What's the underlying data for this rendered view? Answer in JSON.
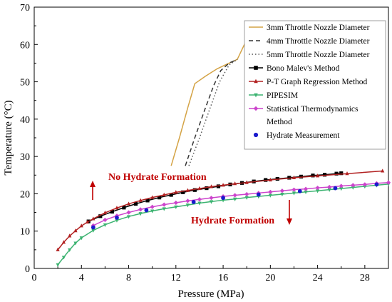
{
  "chart_data": {
    "type": "line",
    "xlabel": "Pressure (MPa)",
    "ylabel": "Temperature (°C)",
    "xlim": [
      0,
      30
    ],
    "ylim": [
      0,
      70
    ],
    "xticks": [
      0,
      4,
      8,
      12,
      16,
      20,
      24,
      28
    ],
    "yticks": [
      0,
      10,
      20,
      30,
      40,
      50,
      60,
      70
    ],
    "grid": false,
    "legend_position": "top-right",
    "annotations": [
      {
        "text": "No Hydrate Formation",
        "color": "#c00000",
        "arrow": "up"
      },
      {
        "text": "Hydrate Formation",
        "color": "#c00000",
        "arrow": "down"
      }
    ],
    "series": [
      {
        "name": "3mm Throttle Nozzle Diameter",
        "color": "#d4a345",
        "dash": "",
        "x": [
          11.6,
          12.3,
          13.0,
          13.6,
          14.5,
          15.5,
          16.5,
          17.2,
          17.8,
          18.2,
          18.6
        ],
        "y": [
          27.5,
          35.0,
          43.0,
          49.5,
          51.5,
          53.5,
          55.0,
          56.0,
          60.0,
          63.5,
          65.0
        ]
      },
      {
        "name": "4mm Throttle Nozzle Diameter",
        "color": "#333333",
        "dash": "6,4",
        "x": [
          12.8,
          13.6,
          14.5,
          15.2,
          15.8,
          16.5,
          17.2
        ],
        "y": [
          27.5,
          35.0,
          43.0,
          49.0,
          53.0,
          55.0,
          56.0
        ]
      },
      {
        "name": "5mm Throttle Nozzle Diameter",
        "color": "#555555",
        "dash": "1.5,3",
        "x": [
          13.1,
          14.0,
          14.9,
          15.7,
          16.5,
          17.2
        ],
        "y": [
          27.5,
          35.0,
          43.0,
          50.0,
          54.5,
          56.0
        ]
      },
      {
        "name": "Bono Malev's Method",
        "color": "#000000",
        "marker": "square",
        "x": [
          4.6,
          5.6,
          6.6,
          7.6,
          8.6,
          9.6,
          10.6,
          11.6,
          12.6,
          13.6,
          14.6,
          15.6,
          16.6,
          17.6,
          18.6,
          19.6,
          20.6,
          21.6,
          22.6,
          23.6,
          24.6,
          25.6,
          26.0
        ],
        "y": [
          12.6,
          14.0,
          15.2,
          16.3,
          17.3,
          18.2,
          19.0,
          19.7,
          20.4,
          21.0,
          21.5,
          22.0,
          22.5,
          22.9,
          23.3,
          23.7,
          24.0,
          24.3,
          24.6,
          24.9,
          25.1,
          25.4,
          25.5
        ]
      },
      {
        "name": "P-T Graph Regression Method",
        "color": "#b22222",
        "marker": "triangle",
        "x": [
          2.0,
          2.5,
          3.0,
          3.5,
          4.0,
          4.5,
          5.0,
          6.0,
          7.0,
          8.0,
          9.0,
          10.0,
          11.0,
          12.0,
          13.0,
          14.0,
          15.0,
          16.0,
          17.0,
          18.0,
          20.0,
          22.0,
          24.0,
          26.5,
          29.5
        ],
        "y": [
          5.0,
          7.0,
          8.7,
          10.1,
          11.4,
          12.4,
          13.3,
          14.9,
          16.2,
          17.3,
          18.2,
          19.0,
          19.7,
          20.4,
          20.9,
          21.4,
          21.9,
          22.3,
          22.7,
          23.0,
          23.7,
          24.3,
          24.8,
          25.4,
          26.1
        ]
      },
      {
        "name": "PIPESIM",
        "color": "#3cb371",
        "marker": "triangle-down",
        "x": [
          2.0,
          2.5,
          3.0,
          3.5,
          4.0,
          5.0,
          6.0,
          7.0,
          8.0,
          9.0,
          10.0,
          11.0,
          12.0,
          13.0,
          14.0,
          15.0,
          16.0,
          17.0,
          18.0,
          19.0,
          20.0,
          21.0,
          22.0,
          23.0,
          24.0,
          25.0,
          26.0,
          27.0,
          28.0,
          29.0,
          30.0
        ],
        "y": [
          1.0,
          3.0,
          5.0,
          6.8,
          8.2,
          10.2,
          11.7,
          12.9,
          13.9,
          14.7,
          15.4,
          16.0,
          16.5,
          17.0,
          17.5,
          17.9,
          18.3,
          18.6,
          19.0,
          19.3,
          19.6,
          19.9,
          20.2,
          20.5,
          20.8,
          21.1,
          21.4,
          21.7,
          22.0,
          22.3,
          22.6
        ]
      },
      {
        "name": "Statistical Thermodynamics Method",
        "color": "#cc44cc",
        "marker": "diamond",
        "x": [
          5.0,
          6.0,
          7.0,
          8.0,
          9.0,
          10.0,
          11.0,
          12.0,
          13.0,
          14.0,
          15.0,
          16.0,
          17.0,
          18.0,
          19.0,
          20.0,
          21.0,
          22.0,
          23.0,
          24.0,
          25.0,
          26.0,
          27.0,
          28.0,
          29.0,
          30.0
        ],
        "y": [
          11.5,
          13.0,
          14.1,
          15.0,
          15.8,
          16.5,
          17.1,
          17.6,
          18.1,
          18.5,
          18.9,
          19.3,
          19.6,
          19.9,
          20.2,
          20.5,
          20.8,
          21.1,
          21.3,
          21.6,
          21.8,
          22.1,
          22.3,
          22.5,
          22.8,
          23.0
        ]
      },
      {
        "name": "Hydrate Measurement",
        "color": "#1a1acc",
        "marker": "circle",
        "line": false,
        "x": [
          5.0,
          7.0,
          9.5,
          13.5,
          16.0,
          19.0,
          22.5,
          25.5,
          29.0
        ],
        "y": [
          11.0,
          13.6,
          15.6,
          17.8,
          18.9,
          19.8,
          20.7,
          21.5,
          22.5
        ]
      }
    ]
  }
}
